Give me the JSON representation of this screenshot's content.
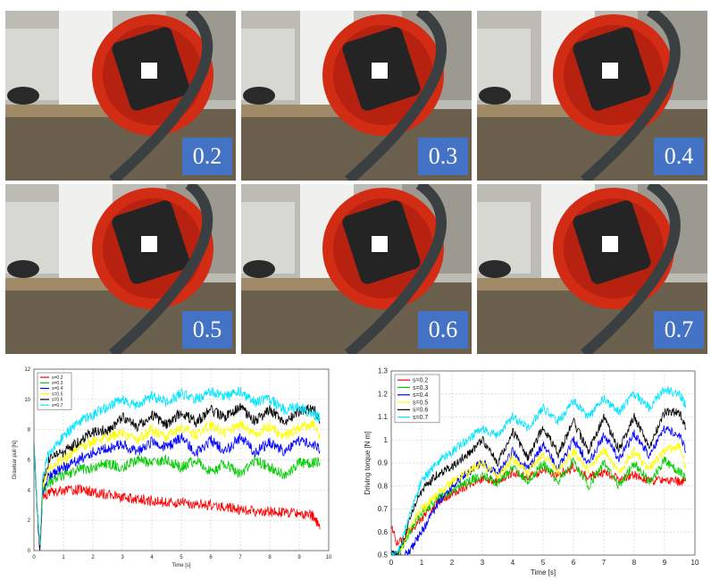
{
  "photos": {
    "labels": [
      "0.2",
      "0.3",
      "0.4",
      "0.5",
      "0.6",
      "0.7"
    ]
  },
  "chart_data": [
    {
      "type": "line",
      "xlabel": "Time [s]",
      "ylabel": "Drawbar pull [N]",
      "xlim": [
        0,
        10
      ],
      "ylim": [
        0,
        12
      ],
      "xticks": [
        0,
        1,
        2,
        3,
        4,
        5,
        6,
        7,
        8,
        9,
        10
      ],
      "yticks": [
        0,
        2,
        4,
        6,
        8,
        10,
        12
      ],
      "grid": true,
      "legend": "top-left",
      "series": [
        {
          "name": "s=0.2",
          "color": "#ff0000",
          "x": [
            0,
            0.1,
            0.2,
            0.3,
            0.5,
            1,
            1.5,
            2,
            2.5,
            3,
            3.5,
            4,
            4.5,
            5,
            5.5,
            6,
            6.5,
            7,
            7.5,
            8,
            8.5,
            9,
            9.5,
            9.7
          ],
          "values": [
            7,
            3,
            0,
            3.5,
            3.8,
            4,
            4,
            3.9,
            3.7,
            3.5,
            3.4,
            3.3,
            3.2,
            3.2,
            3.1,
            3,
            2.9,
            2.7,
            2.6,
            2.6,
            2.5,
            2.5,
            2.3,
            1.4
          ]
        },
        {
          "name": "s=0.3",
          "color": "#00cc00",
          "x": [
            0,
            0.1,
            0.2,
            0.3,
            0.5,
            1,
            1.5,
            2,
            2.5,
            3,
            3.5,
            4,
            4.5,
            5,
            5.5,
            6,
            6.5,
            7,
            7.5,
            8,
            8.5,
            9,
            9.5,
            9.7
          ],
          "values": [
            7,
            3,
            0,
            4,
            4.5,
            5,
            5.3,
            5.5,
            5.8,
            5.5,
            6,
            5.8,
            6,
            5.5,
            6,
            5.2,
            5.8,
            5,
            6,
            5.5,
            5,
            5.8,
            5.8,
            5.8
          ]
        },
        {
          "name": "s=0.4",
          "color": "#0000ff",
          "x": [
            0,
            0.1,
            0.2,
            0.3,
            0.5,
            1,
            1.5,
            2,
            2.5,
            3,
            3.5,
            4,
            4.5,
            5,
            5.5,
            6,
            6.5,
            7,
            7.5,
            8,
            8.5,
            9,
            9.5,
            9.7
          ],
          "values": [
            7,
            3,
            0,
            4,
            5,
            5.5,
            6,
            6.5,
            6.8,
            7,
            6.5,
            7.2,
            6.8,
            7.5,
            6.5,
            7.3,
            6.6,
            7.5,
            6.5,
            7.2,
            6.5,
            7.3,
            7,
            6.6
          ]
        },
        {
          "name": "s=0.5",
          "color": "#ffff00",
          "x": [
            0,
            0.1,
            0.2,
            0.3,
            0.5,
            1,
            1.5,
            2,
            2.5,
            3,
            3.5,
            4,
            4.5,
            5,
            5.5,
            6,
            6.5,
            7,
            7.5,
            8,
            8.5,
            9,
            9.5,
            9.7
          ],
          "values": [
            7,
            3,
            0,
            4.2,
            5.5,
            6,
            6.8,
            7.2,
            7.5,
            7.8,
            7.3,
            8,
            7.5,
            8.2,
            7.6,
            8.3,
            7.8,
            8.4,
            7.7,
            8.2,
            7.5,
            8.2,
            8.3,
            7.6
          ]
        },
        {
          "name": "s=0.6",
          "color": "#000000",
          "x": [
            0,
            0.1,
            0.2,
            0.3,
            0.5,
            1,
            1.5,
            2,
            2.5,
            3,
            3.5,
            4,
            4.5,
            5,
            5.5,
            6,
            6.5,
            7,
            7.5,
            8,
            8.5,
            9,
            9.5,
            9.7
          ],
          "values": [
            7,
            3,
            0,
            4.5,
            6,
            6.5,
            7.2,
            7.8,
            8,
            8.8,
            8.2,
            9,
            8.3,
            9.2,
            8.5,
            9.3,
            8.8,
            9.5,
            8.6,
            9.3,
            8.5,
            9.2,
            9.4,
            8.5
          ]
        },
        {
          "name": "s=0.7",
          "color": "#00e5ff",
          "x": [
            0,
            0.1,
            0.2,
            0.3,
            0.5,
            1,
            1.5,
            2,
            2.5,
            3,
            3.5,
            4,
            4.5,
            5,
            5.5,
            6,
            6.5,
            7,
            7.5,
            8,
            8.5,
            9,
            9.5,
            9.7
          ],
          "values": [
            7,
            3,
            0,
            5,
            6.5,
            7.5,
            8.5,
            9,
            9.5,
            10,
            9.6,
            10.2,
            9.8,
            10.4,
            10,
            10.5,
            10.2,
            10.5,
            9.8,
            10,
            9.3,
            9.5,
            9,
            8.8
          ]
        }
      ]
    },
    {
      "type": "line",
      "xlabel": "Time [s]",
      "ylabel": "Driving torque [N m]",
      "xlim": [
        0,
        10
      ],
      "ylim": [
        0.5,
        1.3
      ],
      "xticks": [
        0,
        1,
        2,
        3,
        4,
        5,
        6,
        7,
        8,
        9,
        10
      ],
      "yticks": [
        0.5,
        0.6,
        0.7,
        0.8,
        0.9,
        1,
        1.1,
        1.2,
        1.3
      ],
      "grid": true,
      "legend": "top-left",
      "series": [
        {
          "name": "s=0.2",
          "color": "#ff0000",
          "x": [
            0,
            0.2,
            0.4,
            0.6,
            1,
            1.5,
            2,
            2.5,
            3,
            3.5,
            4,
            4.5,
            5,
            5.5,
            6,
            6.5,
            7,
            7.5,
            8,
            8.5,
            9,
            9.5,
            9.7
          ],
          "values": [
            0.63,
            0.55,
            0.57,
            0.6,
            0.66,
            0.72,
            0.77,
            0.8,
            0.83,
            0.82,
            0.86,
            0.84,
            0.87,
            0.85,
            0.88,
            0.84,
            0.86,
            0.83,
            0.85,
            0.82,
            0.83,
            0.82,
            0.82
          ]
        },
        {
          "name": "s=0.3",
          "color": "#00cc00",
          "x": [
            0,
            0.2,
            0.4,
            0.6,
            1,
            1.5,
            2,
            2.5,
            3,
            3.5,
            4,
            4.5,
            5,
            5.5,
            6,
            6.5,
            7,
            7.5,
            8,
            8.5,
            9,
            9.5,
            9.7
          ],
          "values": [
            0.5,
            0.5,
            0.55,
            0.6,
            0.68,
            0.74,
            0.78,
            0.82,
            0.85,
            0.81,
            0.88,
            0.82,
            0.9,
            0.82,
            0.91,
            0.8,
            0.9,
            0.8,
            0.9,
            0.82,
            0.91,
            0.86,
            0.83
          ]
        },
        {
          "name": "s=0.4",
          "color": "#0000ff",
          "x": [
            0,
            0.2,
            0.4,
            0.6,
            1,
            1.5,
            2,
            2.5,
            3,
            3.5,
            4,
            4.5,
            5,
            5.5,
            6,
            6.5,
            7,
            7.5,
            8,
            8.5,
            9,
            9.5,
            9.7
          ],
          "values": [
            0.5,
            0.5,
            0.5,
            0.52,
            0.6,
            0.72,
            0.8,
            0.86,
            0.9,
            0.85,
            0.95,
            0.87,
            0.98,
            0.88,
            1,
            0.9,
            1.02,
            0.92,
            1.03,
            0.93,
            1.05,
            1.02,
            0.95
          ]
        },
        {
          "name": "s=0.5",
          "color": "#ffff00",
          "x": [
            0,
            0.2,
            0.4,
            0.6,
            1,
            1.5,
            2,
            2.5,
            3,
            3.5,
            4,
            4.5,
            5,
            5.5,
            6,
            6.5,
            7,
            7.5,
            8,
            8.5,
            9,
            9.5,
            9.7
          ],
          "values": [
            0.5,
            0.5,
            0.55,
            0.62,
            0.7,
            0.76,
            0.82,
            0.86,
            0.9,
            0.84,
            0.92,
            0.86,
            0.94,
            0.86,
            0.95,
            0.87,
            0.96,
            0.86,
            0.95,
            0.87,
            0.96,
            0.97,
            0.88
          ]
        },
        {
          "name": "s=0.6",
          "color": "#000000",
          "x": [
            0,
            0.2,
            0.4,
            0.6,
            1,
            1.5,
            2,
            2.5,
            3,
            3.5,
            4,
            4.5,
            5,
            5.5,
            6,
            6.5,
            7,
            7.5,
            8,
            8.5,
            9,
            9.5,
            9.7
          ],
          "values": [
            0.5,
            0.5,
            0.56,
            0.65,
            0.78,
            0.85,
            0.88,
            0.94,
            1,
            0.9,
            1.04,
            0.92,
            1.06,
            0.94,
            1.08,
            0.95,
            1.1,
            0.96,
            1.1,
            0.97,
            1.12,
            1.12,
            1.05
          ]
        },
        {
          "name": "s=0.7",
          "color": "#00e5ff",
          "x": [
            0,
            0.2,
            0.4,
            0.6,
            1,
            1.5,
            2,
            2.5,
            3,
            3.5,
            4,
            4.5,
            5,
            5.5,
            6,
            6.5,
            7,
            7.5,
            8,
            8.5,
            9,
            9.5,
            9.7
          ],
          "values": [
            0.5,
            0.5,
            0.58,
            0.68,
            0.82,
            0.9,
            0.95,
            1.0,
            1.05,
            1.02,
            1.1,
            1.05,
            1.14,
            1.08,
            1.17,
            1.1,
            1.18,
            1.12,
            1.2,
            1.14,
            1.22,
            1.2,
            1.15
          ]
        }
      ]
    }
  ]
}
